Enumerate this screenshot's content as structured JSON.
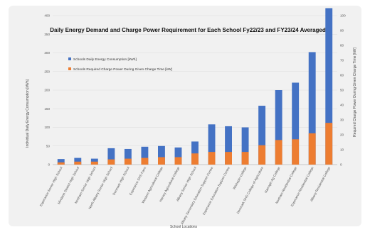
{
  "chart_data": {
    "type": "bar",
    "title": "Daily Energy Demand and Charge Power Requirement for Each School Fy22/23 and FY23/24 Averaged",
    "xlabel": "School Locations",
    "ylabel": "Individual Daily Energy Consumption [kWh]",
    "y2label": "Required Charge Power During Given Charge Time [kW]",
    "ylim": [
      0,
      400
    ],
    "y2lim": [
      0,
      100
    ],
    "yticks": [
      0,
      50,
      100,
      150,
      200,
      250,
      300,
      350,
      400
    ],
    "y2ticks": [
      0,
      10,
      20,
      30,
      40,
      50,
      60,
      70,
      80,
      90,
      100
    ],
    "legend_position": "top-left",
    "categories": [
      "Esperance Senior High School",
      "Mindarie District High School",
      "Northam Senior High School",
      "North Albany Senior High School",
      "Denmark High School",
      "Esperance SHS Farm",
      "Western Agricultural College",
      "Harvey Agricultural College",
      "Albany Senior High School",
      "Albany Secondary Education Support Centre",
      "Esperance Education Support Centre",
      "Wickepin College",
      "Denmark SHS College of Agriculture",
      "Narrogin Ag College",
      "Northam Residential College",
      "Esperance Residential College",
      "Albany Residential College"
    ],
    "series": [
      {
        "name": "Schools Daily Energy Consumption [kWh]",
        "color": "#4472c4",
        "axis": "left",
        "values": [
          15,
          18,
          16,
          44,
          42,
          48,
          50,
          46,
          62,
          108,
          103,
          100,
          158,
          200,
          220,
          302,
          420
        ]
      },
      {
        "name": "Schools Required Charge Power During Given Charge Time [kW]",
        "color": "#ed7d31",
        "axis": "right",
        "values": [
          1.5,
          2,
          2,
          3.5,
          4,
          4.5,
          5,
          5,
          7.5,
          8.5,
          8.5,
          8.5,
          13,
          16.5,
          17,
          21,
          28
        ]
      }
    ]
  }
}
